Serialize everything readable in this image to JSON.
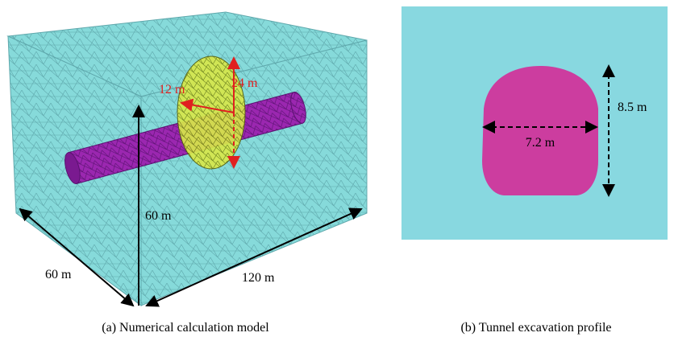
{
  "panels": [
    {
      "caption": "(a) Numerical calculation model",
      "labels": {
        "ellipsoid_radius": "12 m",
        "ellipsoid_height": "24 m",
        "height": "60 m",
        "depth": "60 m",
        "length": "120 m"
      }
    },
    {
      "caption": "(b) Tunnel excavation profile",
      "labels": {
        "width": "7.2 m",
        "height": "8.5 m"
      }
    }
  ]
}
